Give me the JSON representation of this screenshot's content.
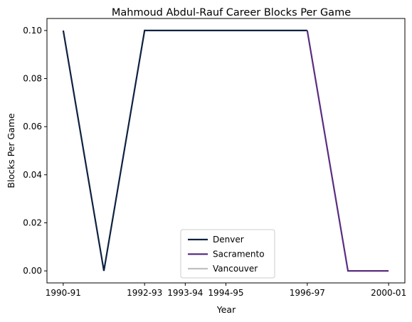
{
  "chart_data": {
    "type": "line",
    "title": "Mahmoud Abdul-Rauf Career Blocks Per Game",
    "xlabel": "Year",
    "ylabel": "Blocks Per Game",
    "x_tick_labels": [
      "1990-91",
      "1992-93",
      "1993-94",
      "1994-95",
      "1996-97",
      "2000-01"
    ],
    "x_tick_index": [
      0,
      2,
      3,
      4,
      6,
      8
    ],
    "x_index_range": [
      -0.4,
      8.4
    ],
    "y_ticks": [
      0.0,
      0.02,
      0.04,
      0.06,
      0.08,
      0.1
    ],
    "y_tick_labels": [
      "0.00",
      "0.02",
      "0.04",
      "0.06",
      "0.08",
      "0.10"
    ],
    "ylim": [
      -0.005,
      0.105
    ],
    "grid": false,
    "legend_position": "lower-center",
    "series": [
      {
        "name": "Denver",
        "color": "#0E2240",
        "points": [
          [
            0,
            0.1
          ],
          [
            1,
            0.0
          ],
          [
            2,
            0.1
          ],
          [
            3,
            0.1
          ],
          [
            4,
            0.1
          ],
          [
            5,
            0.1
          ],
          [
            6,
            0.1
          ]
        ]
      },
      {
        "name": "Sacramento",
        "color": "#5A2D81",
        "points": [
          [
            6,
            0.1
          ],
          [
            7,
            0.0
          ],
          [
            8,
            0.0
          ]
        ]
      },
      {
        "name": "Vancouver",
        "color": "#BEC0C2",
        "points": []
      }
    ]
  }
}
